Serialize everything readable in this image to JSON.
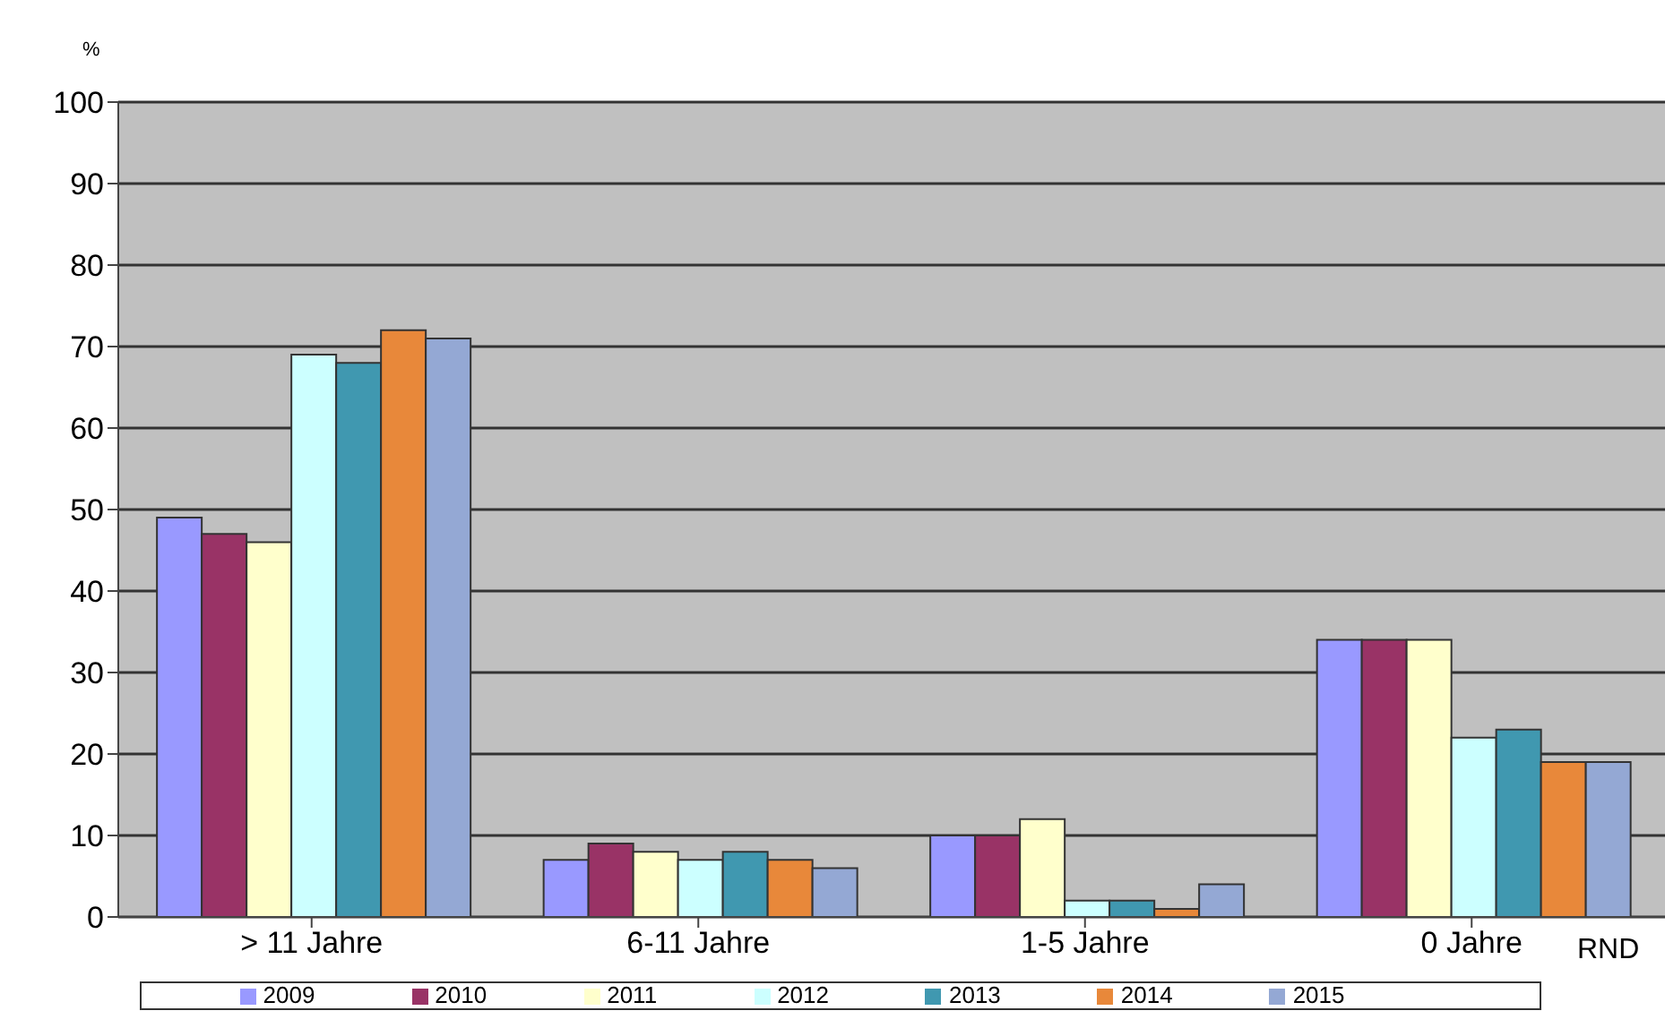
{
  "chart_data": {
    "type": "bar",
    "xlabel": "RND",
    "ylabel": "%",
    "categories": [
      "> 11 Jahre",
      "6-11 Jahre",
      "1-5 Jahre",
      "0 Jahre"
    ],
    "series": [
      {
        "name": "2009",
        "color": "#9999ff",
        "values": [
          49,
          7,
          10,
          34
        ]
      },
      {
        "name": "2010",
        "color": "#993366",
        "values": [
          47,
          9,
          10,
          34
        ]
      },
      {
        "name": "2011",
        "color": "#ffffcc",
        "values": [
          46,
          8,
          12,
          34
        ]
      },
      {
        "name": "2012",
        "color": "#ccffff",
        "values": [
          69,
          7,
          2,
          22
        ]
      },
      {
        "name": "2013",
        "color": "#4098b0",
        "values": [
          68,
          8,
          2,
          23
        ]
      },
      {
        "name": "2014",
        "color": "#e8883a",
        "values": [
          72,
          7,
          1,
          19
        ]
      },
      {
        "name": "2015",
        "color": "#94a8d4",
        "values": [
          71,
          6,
          4,
          19
        ]
      }
    ],
    "ylim": [
      0,
      100
    ],
    "yticks": [
      0,
      10,
      20,
      30,
      40,
      50,
      60,
      70,
      80,
      90,
      100
    ],
    "grid": "y",
    "legend": "bottom"
  }
}
